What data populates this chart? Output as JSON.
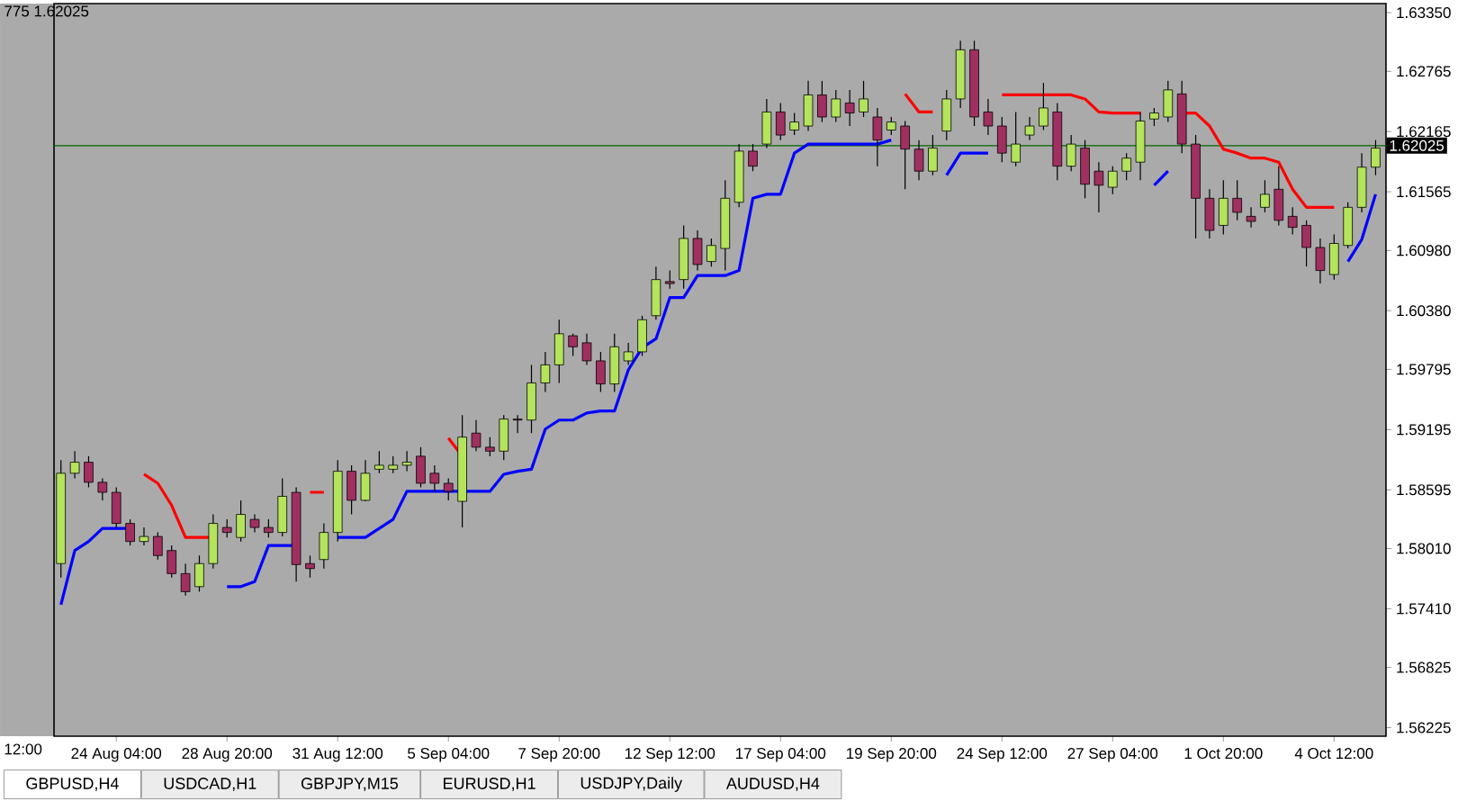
{
  "chart_data": {
    "type": "candlestick",
    "categories": [
      null,
      null,
      null,
      null,
      "24 Aug 04:00",
      null,
      null,
      null,
      null,
      null,
      null,
      null,
      "28 Aug 20:00",
      null,
      null,
      null,
      null,
      null,
      null,
      null,
      "31 Aug 12:00",
      null,
      null,
      null,
      null,
      null,
      null,
      null,
      "5 Sep 04:00",
      null,
      null,
      null,
      null,
      null,
      null,
      null,
      "7 Sep 20:00",
      null,
      null,
      null,
      null,
      null,
      null,
      null,
      "12 Sep 12:00",
      null,
      null,
      null,
      null,
      null,
      null,
      null,
      "17 Sep 04:00",
      null,
      null,
      null,
      null,
      null,
      null,
      null,
      "19 Sep 20:00",
      null,
      null,
      null,
      null,
      null,
      null,
      null,
      "24 Sep 12:00",
      null,
      null,
      null,
      null,
      null,
      null,
      null,
      "27 Sep 04:00",
      null,
      null,
      null,
      null,
      null,
      null,
      null,
      "1 Oct 20:00",
      null,
      null,
      null,
      null,
      null,
      null,
      null,
      "4 Oct 12:00",
      null,
      null,
      null
    ],
    "ohlc": [
      [
        1.5786,
        1.5889,
        1.5772,
        1.5876
      ],
      [
        1.5876,
        1.5898,
        1.5871,
        1.5887
      ],
      [
        1.5887,
        1.5893,
        1.5862,
        1.5867
      ],
      [
        1.5867,
        1.5871,
        1.5849,
        1.5857
      ],
      [
        1.5857,
        1.5862,
        1.5822,
        1.5826
      ],
      [
        1.5826,
        1.583,
        1.5804,
        1.5808
      ],
      [
        1.5808,
        1.5822,
        1.5804,
        1.5813
      ],
      [
        1.5813,
        1.5817,
        1.579,
        1.5794
      ],
      [
        1.5799,
        1.5804,
        1.5772,
        1.5776
      ],
      [
        1.5776,
        1.5786,
        1.5754,
        1.5758
      ],
      [
        1.5763,
        1.5794,
        1.5758,
        1.5786
      ],
      [
        1.5786,
        1.5835,
        1.5781,
        1.5826
      ],
      [
        1.5822,
        1.583,
        1.5812,
        1.5817
      ],
      [
        1.5812,
        1.5849,
        1.5808,
        1.5835
      ],
      [
        1.583,
        1.5835,
        1.5817,
        1.5822
      ],
      [
        1.5822,
        1.583,
        1.5812,
        1.5817
      ],
      [
        1.5817,
        1.5871,
        1.5813,
        1.5853
      ],
      [
        1.5857,
        1.5862,
        1.5768,
        1.5785
      ],
      [
        1.5786,
        1.5794,
        1.5772,
        1.5781
      ],
      [
        1.579,
        1.5826,
        1.5781,
        1.5817
      ],
      [
        1.5817,
        1.5889,
        1.5808,
        1.5878
      ],
      [
        1.5878,
        1.5884,
        1.5835,
        1.5849
      ],
      [
        1.5849,
        1.5889,
        1.5848,
        1.5876
      ],
      [
        1.588,
        1.5898,
        1.5876,
        1.5884
      ],
      [
        1.588,
        1.5893,
        1.5876,
        1.5884
      ],
      [
        1.5884,
        1.5898,
        1.5878,
        1.5887
      ],
      [
        1.5893,
        1.5902,
        1.5862,
        1.5866
      ],
      [
        1.5876,
        1.5884,
        1.5858,
        1.5866
      ],
      [
        1.5866,
        1.5871,
        1.5849,
        1.5858
      ],
      [
        1.5848,
        1.5934,
        1.5822,
        1.5912
      ],
      [
        1.5916,
        1.5929,
        1.5898,
        1.5902
      ],
      [
        1.5902,
        1.5912,
        1.5893,
        1.5898
      ],
      [
        1.5898,
        1.5934,
        1.5889,
        1.593
      ],
      [
        1.593,
        1.5934,
        1.5916,
        1.5929
      ],
      [
        1.5929,
        1.5984,
        1.5916,
        1.5966
      ],
      [
        1.5966,
        1.5997,
        1.5957,
        1.5984
      ],
      [
        1.5984,
        1.6029,
        1.5966,
        1.6015
      ],
      [
        1.6013,
        1.6015,
        1.5993,
        1.6002
      ],
      [
        1.6006,
        1.6015,
        1.5984,
        1.5988
      ],
      [
        1.5988,
        1.5997,
        1.5957,
        1.5965
      ],
      [
        1.5965,
        1.6015,
        1.5957,
        1.6002
      ],
      [
        1.5988,
        1.6006,
        1.5984,
        1.5997
      ],
      [
        1.5997,
        1.6033,
        1.5993,
        1.6029
      ],
      [
        1.6033,
        1.6082,
        1.6029,
        1.6069
      ],
      [
        1.6067,
        1.6078,
        1.606,
        1.6065
      ],
      [
        1.6069,
        1.6123,
        1.606,
        1.611
      ],
      [
        1.611,
        1.6118,
        1.6078,
        1.6084
      ],
      [
        1.6087,
        1.611,
        1.6082,
        1.6103
      ],
      [
        1.61,
        1.6168,
        1.6078,
        1.615
      ],
      [
        1.6146,
        1.6204,
        1.6141,
        1.6197
      ],
      [
        1.6197,
        1.6204,
        1.6177,
        1.6182
      ],
      [
        1.6204,
        1.6249,
        1.62,
        1.6236
      ],
      [
        1.6236,
        1.6245,
        1.6208,
        1.6213
      ],
      [
        1.6218,
        1.6235,
        1.6213,
        1.6226
      ],
      [
        1.6222,
        1.6267,
        1.6217,
        1.6253
      ],
      [
        1.6253,
        1.6267,
        1.6226,
        1.6231
      ],
      [
        1.6231,
        1.6258,
        1.6226,
        1.6249
      ],
      [
        1.6245,
        1.6258,
        1.6222,
        1.6235
      ],
      [
        1.6236,
        1.6267,
        1.6231,
        1.6249
      ],
      [
        1.6231,
        1.624,
        1.6182,
        1.6208
      ],
      [
        1.6218,
        1.6231,
        1.6213,
        1.6226
      ],
      [
        1.6222,
        1.6227,
        1.6159,
        1.6199
      ],
      [
        1.6199,
        1.6208,
        1.6168,
        1.6177
      ],
      [
        1.6177,
        1.6213,
        1.6173,
        1.62
      ],
      [
        1.6217,
        1.6258,
        1.6208,
        1.6249
      ],
      [
        1.6249,
        1.6307,
        1.624,
        1.6298
      ],
      [
        1.6298,
        1.6307,
        1.6222,
        1.6231
      ],
      [
        1.6236,
        1.6249,
        1.6213,
        1.6222
      ],
      [
        1.6222,
        1.6231,
        1.6186,
        1.6195
      ],
      [
        1.6186,
        1.6236,
        1.6182,
        1.6204
      ],
      [
        1.6213,
        1.6231,
        1.6208,
        1.6222
      ],
      [
        1.6222,
        1.6265,
        1.6218,
        1.624
      ],
      [
        1.6236,
        1.6245,
        1.6168,
        1.6182
      ],
      [
        1.6182,
        1.6213,
        1.6177,
        1.6204
      ],
      [
        1.62,
        1.6208,
        1.615,
        1.6164
      ],
      [
        1.6177,
        1.6186,
        1.6136,
        1.6163
      ],
      [
        1.6161,
        1.6182,
        1.6154,
        1.6177
      ],
      [
        1.6177,
        1.6195,
        1.6168,
        1.619
      ],
      [
        1.6186,
        1.6236,
        1.6168,
        1.6227
      ],
      [
        1.6229,
        1.624,
        1.6222,
        1.6235
      ],
      [
        1.6231,
        1.6267,
        1.6226,
        1.6258
      ],
      [
        1.6254,
        1.6267,
        1.6195,
        1.6204
      ],
      [
        1.6204,
        1.6213,
        1.611,
        1.615
      ],
      [
        1.615,
        1.6159,
        1.611,
        1.6118
      ],
      [
        1.6123,
        1.6168,
        1.6114,
        1.615
      ],
      [
        1.615,
        1.6168,
        1.6128,
        1.6136
      ],
      [
        1.6132,
        1.6141,
        1.6121,
        1.6127
      ],
      [
        1.6141,
        1.6168,
        1.6136,
        1.6154
      ],
      [
        1.6159,
        1.6182,
        1.6123,
        1.6128
      ],
      [
        1.6132,
        1.6141,
        1.6114,
        1.6121
      ],
      [
        1.6123,
        1.6128,
        1.6082,
        1.6101
      ],
      [
        1.6101,
        1.611,
        1.6065,
        1.6078
      ],
      [
        1.6074,
        1.6114,
        1.6069,
        1.6105
      ],
      [
        1.6103,
        1.6146,
        1.61,
        1.6141
      ],
      [
        1.6141,
        1.6195,
        1.6136,
        1.6181
      ],
      [
        1.6181,
        1.6208,
        1.6173,
        1.62
      ]
    ],
    "series": [
      {
        "type": "line",
        "color": "#0000ff",
        "values": [
          1.5745,
          1.5799,
          1.5808,
          1.5821,
          1.5821,
          1.5821,
          null,
          null,
          null,
          null,
          null,
          null,
          1.5763,
          1.5763,
          1.5768,
          1.5804,
          1.5804,
          1.5804,
          null,
          null,
          1.5812,
          1.5812,
          1.5812,
          1.5821,
          1.583,
          1.5858,
          1.5858,
          1.5858,
          1.5858,
          1.5858,
          1.5858,
          1.5858,
          1.5875,
          1.5878,
          1.588,
          1.592,
          1.5929,
          1.5929,
          1.5936,
          1.5938,
          1.5938,
          1.5979,
          1.6001,
          1.601,
          1.6051,
          1.6051,
          1.6073,
          1.6073,
          1.6073,
          1.6078,
          1.615,
          1.6154,
          1.6154,
          1.6195,
          1.6204,
          1.6204,
          1.6204,
          1.6204,
          1.6204,
          1.6204,
          1.6208,
          null,
          null,
          null,
          1.6173,
          1.6195,
          1.6195,
          1.6195,
          null,
          null,
          null,
          null,
          null,
          null,
          null,
          null,
          null,
          null,
          null,
          1.6163,
          1.6177,
          null,
          null,
          null,
          null,
          null,
          null,
          null,
          null,
          null,
          null,
          null,
          null,
          1.6087,
          1.6109,
          1.6154
        ]
      },
      {
        "type": "line",
        "color": "#ff0000",
        "values": [
          null,
          null,
          null,
          null,
          null,
          null,
          1.5875,
          1.5866,
          1.5844,
          1.5812,
          1.5812,
          1.5812,
          null,
          null,
          null,
          null,
          null,
          null,
          1.5857,
          1.5857,
          null,
          null,
          null,
          null,
          null,
          null,
          null,
          null,
          1.5911,
          1.5893,
          null,
          null,
          null,
          null,
          null,
          null,
          null,
          null,
          null,
          null,
          null,
          null,
          null,
          null,
          null,
          null,
          null,
          null,
          null,
          null,
          null,
          null,
          null,
          null,
          null,
          null,
          null,
          null,
          null,
          null,
          null,
          1.6254,
          1.6236,
          1.6236,
          null,
          null,
          null,
          null,
          1.6253,
          1.6253,
          1.6253,
          1.6253,
          1.6253,
          1.6253,
          1.6249,
          1.6236,
          1.6235,
          1.6235,
          1.6235,
          null,
          null,
          1.6235,
          1.6235,
          1.6222,
          1.6199,
          1.6195,
          1.619,
          1.619,
          1.6186,
          1.6159,
          1.6141,
          1.6141,
          1.6141,
          null,
          null,
          null
        ]
      }
    ],
    "ylim": [
      1.5614,
      1.6344
    ],
    "yticks": [
      {
        "value": 1.6335,
        "label": "1.63350"
      },
      1.62765,
      1.62165,
      1.61565,
      {
        "value": 1.6098,
        "label": "1.60980"
      },
      {
        "value": 1.6038,
        "label": "1.60380"
      },
      1.59795,
      1.59195,
      1.58595,
      {
        "value": 1.5801,
        "label": "1.58010"
      },
      {
        "value": 1.5741,
        "label": "1.57410"
      },
      1.56825,
      1.56225
    ],
    "ref_lines": [
      {
        "axis": "y",
        "value": 1.62025,
        "label": "1.62025",
        "color": "#006400"
      }
    ],
    "annotations": [
      "775 1.62025",
      "12:00",
      "GBPUSD,H4",
      "USDCAD,H1",
      "GBPJPY,M15",
      "EURUSD,H1",
      "USDJPY,Daily",
      "AUDUSD,H4"
    ]
  }
}
